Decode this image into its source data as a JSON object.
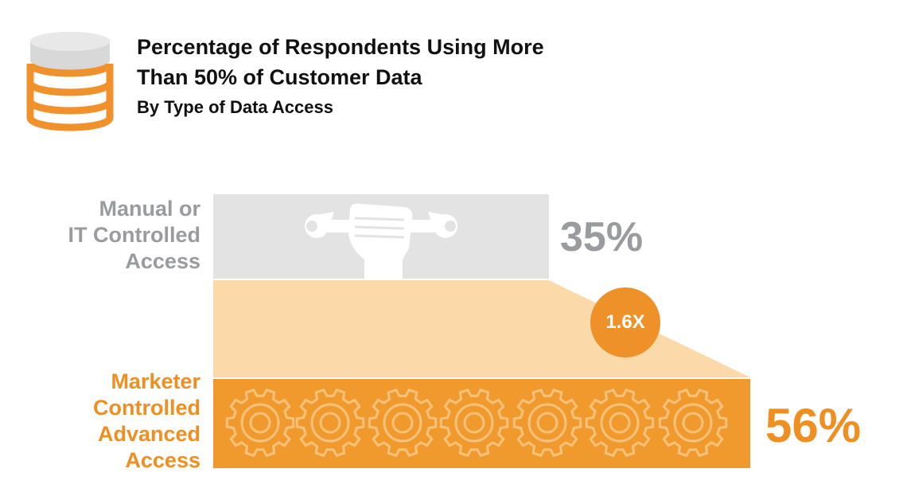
{
  "header": {
    "icon": "database-icon",
    "title_line1": "Percentage of Respondents Using More",
    "title_line2": "Than 50% of Customer Data",
    "subtitle": "By Type of Data Access"
  },
  "colors": {
    "manual_bar": "#e3e3e3",
    "manual_text": "#9a9b9e",
    "marketer_bar": "#f09a2e",
    "marketer_text": "#ef8f21",
    "connector": "#fbd9a8",
    "badge": "#ee9128",
    "icon_orange": "#f0912c",
    "icon_grey": "#d8d8d8"
  },
  "chart_data": {
    "type": "bar",
    "orientation": "horizontal",
    "title": "Percentage of Respondents Using More Than 50% of Customer Data",
    "subtitle": "By Type of Data Access",
    "categories": [
      "Manual or IT Controlled Access",
      "Marketer Controlled Advanced Access"
    ],
    "category_lines": [
      [
        "Manual or",
        "IT Controlled",
        "Access"
      ],
      [
        "Marketer",
        "Controlled",
        "Advanced",
        "Access"
      ]
    ],
    "values": [
      35,
      56
    ],
    "value_labels": [
      "35%",
      "56%"
    ],
    "unit": "%",
    "ratio_label": "1.6X",
    "icons": [
      "wrench-fist-icon",
      "gear-icon"
    ],
    "xlim": [
      0,
      56
    ],
    "grid": false
  }
}
